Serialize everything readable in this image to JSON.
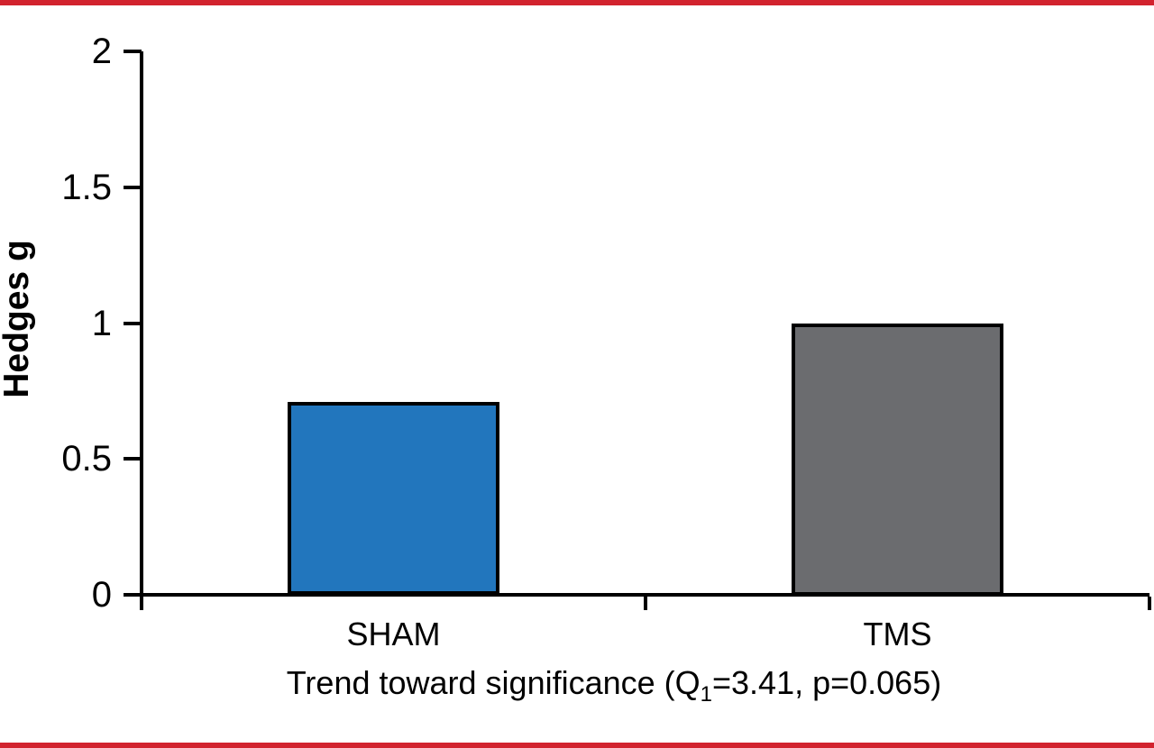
{
  "page": {
    "background": "#ffffff"
  },
  "colors": {
    "page_bg": "#ffffff",
    "red_line": "#d2232e",
    "axis": "#000000",
    "sham_bar": "#2276bd",
    "tms_bar": "#6b6c6f"
  },
  "chart_data": {
    "type": "bar",
    "categories": [
      "SHAM",
      "TMS"
    ],
    "values": [
      0.71,
      1.0
    ],
    "bar_colors": [
      "#2276bd",
      "#6b6c6f"
    ],
    "bar_edge_color": "#000000",
    "title": "",
    "xlabel": "Trend toward significance (Q1=3.41, p=0.065)",
    "ylabel": "Hedges g",
    "ylim": [
      0,
      2
    ],
    "yticks": [
      0,
      0.5,
      1,
      1.5,
      2
    ],
    "ytick_labels": [
      "0",
      "0.5",
      "1",
      "1.5",
      "2"
    ],
    "grid": false,
    "legend": "none"
  },
  "caption": {
    "prefix": "Trend toward significance (Q",
    "subscript": "1",
    "suffix": "=3.41, p=0.065)"
  }
}
